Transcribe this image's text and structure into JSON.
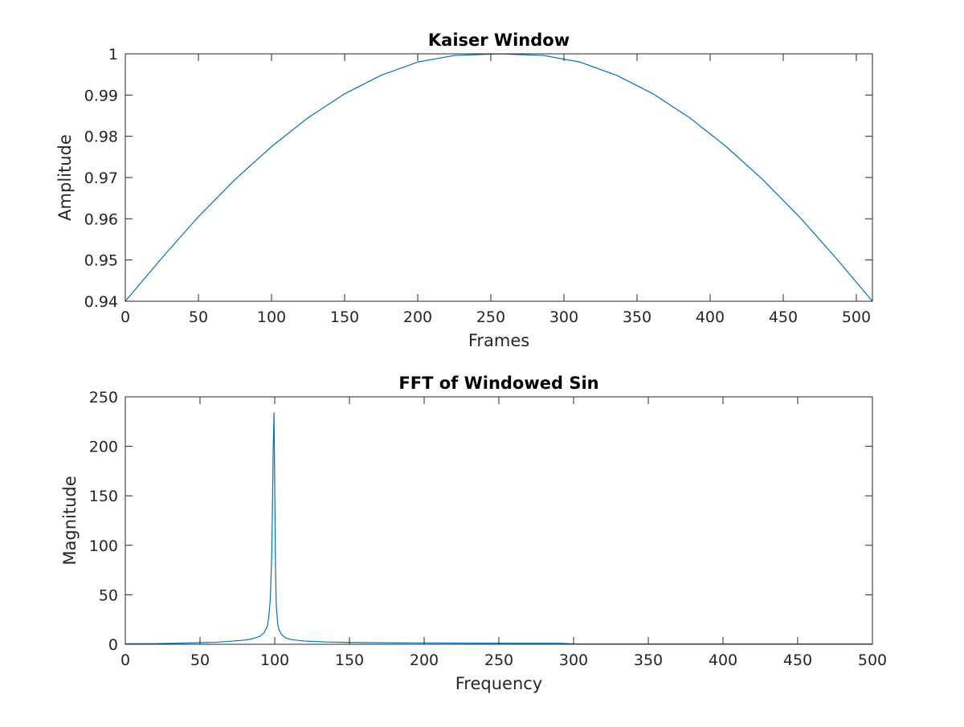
{
  "chart_data": [
    {
      "type": "line",
      "title": "Kaiser Window",
      "xlabel": "Frames",
      "ylabel": "Amplitude",
      "xlim": [
        0,
        511
      ],
      "ylim": [
        0.94,
        1
      ],
      "xticks": [
        0,
        50,
        100,
        150,
        200,
        250,
        300,
        350,
        400,
        450,
        500
      ],
      "xtick_labels": [
        "0",
        "50",
        "100",
        "150",
        "200",
        "250",
        "300",
        "350",
        "400",
        "450",
        "500"
      ],
      "yticks": [
        0.94,
        0.95,
        0.96,
        0.97,
        0.98,
        0.99,
        1
      ],
      "ytick_labels": [
        "0.94",
        "0.95",
        "0.96",
        "0.97",
        "0.98",
        "0.99",
        "1"
      ],
      "grid": false,
      "series": [
        {
          "color": "#0072bd",
          "x": [
            0,
            25,
            50,
            75,
            100,
            125,
            150,
            175,
            200,
            225,
            255.5,
            286,
            311,
            336,
            361,
            386,
            411,
            436,
            461,
            486,
            511
          ],
          "y": [
            0.94,
            0.9505,
            0.9605,
            0.9695,
            0.9775,
            0.9845,
            0.9903,
            0.9948,
            0.998,
            0.9996,
            1.0,
            0.9996,
            0.998,
            0.9948,
            0.9903,
            0.9845,
            0.9775,
            0.9695,
            0.9605,
            0.9505,
            0.94
          ]
        }
      ]
    },
    {
      "type": "line",
      "title": "FFT of Windowed Sin",
      "xlabel": "Frequency",
      "ylabel": "Magnitude",
      "xlim": [
        0,
        500
      ],
      "ylim": [
        0,
        250
      ],
      "xticks": [
        0,
        50,
        100,
        150,
        200,
        250,
        300,
        350,
        400,
        450,
        500
      ],
      "xtick_labels": [
        "0",
        "50",
        "100",
        "150",
        "200",
        "250",
        "300",
        "350",
        "400",
        "450",
        "500"
      ],
      "yticks": [
        0,
        50,
        100,
        150,
        200,
        250
      ],
      "ytick_labels": [
        "0",
        "50",
        "100",
        "150",
        "200",
        "250"
      ],
      "grid": false,
      "series": [
        {
          "color": "#0072bd",
          "x": [
            0,
            20,
            40,
            60,
            70,
            80,
            85,
            90,
            93,
            95,
            96,
            97,
            98,
            98.5,
            99,
            99.5,
            100,
            100.5,
            101,
            102,
            103,
            105,
            108,
            112,
            120,
            135,
            150,
            180,
            220,
            260,
            290,
            300,
            350,
            400,
            450,
            500
          ],
          "y": [
            0.5,
            0.6,
            1.2,
            2.0,
            3.0,
            4.2,
            5.5,
            8.0,
            12,
            18,
            27,
            45,
            90,
            140,
            200,
            234,
            160,
            80,
            40,
            20,
            14,
            9,
            6,
            4.5,
            3.2,
            2.3,
            1.8,
            1.4,
            1.2,
            1.0,
            1.0,
            0.4,
            0.3,
            0.3,
            0.3,
            0.3
          ]
        }
      ]
    }
  ]
}
